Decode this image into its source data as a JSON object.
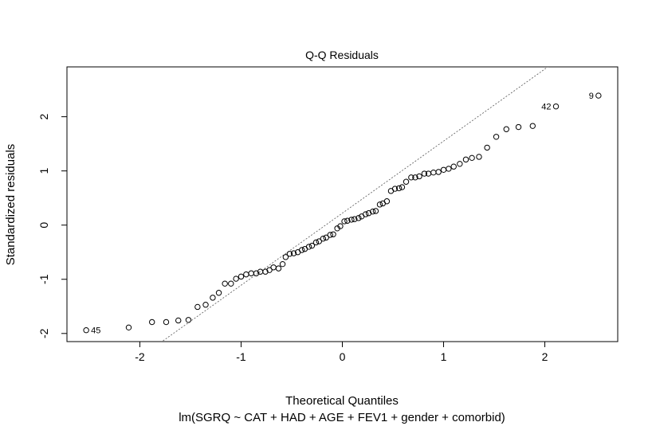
{
  "chart_data": {
    "type": "scatter",
    "title": "Q-Q Residuals",
    "xlabel": "Theoretical Quantiles",
    "ylabel": "Standardized residuals",
    "subtitle": "lm(SGRQ ~ CAT + HAD + AGE + FEV1 + gender + comorbid)",
    "xlim": [
      -2.72,
      2.72
    ],
    "ylim": [
      -2.15,
      2.92
    ],
    "xticks": [
      -2,
      -1,
      0,
      1,
      2
    ],
    "yticks": [
      -2,
      -1,
      0,
      1,
      2
    ],
    "xtick_labels": [
      "-2",
      "-1",
      "0",
      "1",
      "2"
    ],
    "ytick_labels": [
      "-2",
      "-1",
      "0",
      "1",
      "2"
    ],
    "grid": false,
    "reference_line": {
      "slope": 1.33,
      "intercept": 0.22
    },
    "points": [
      {
        "x": -2.53,
        "y": -1.94
      },
      {
        "x": -2.11,
        "y": -1.89
      },
      {
        "x": -1.88,
        "y": -1.79
      },
      {
        "x": -1.74,
        "y": -1.79
      },
      {
        "x": -1.62,
        "y": -1.76
      },
      {
        "x": -1.52,
        "y": -1.75
      },
      {
        "x": -1.43,
        "y": -1.51
      },
      {
        "x": -1.35,
        "y": -1.47
      },
      {
        "x": -1.28,
        "y": -1.34
      },
      {
        "x": -1.22,
        "y": -1.25
      },
      {
        "x": -1.16,
        "y": -1.08
      },
      {
        "x": -1.1,
        "y": -1.08
      },
      {
        "x": -1.05,
        "y": -0.99
      },
      {
        "x": -1.0,
        "y": -0.95
      },
      {
        "x": -0.95,
        "y": -0.91
      },
      {
        "x": -0.9,
        "y": -0.89
      },
      {
        "x": -0.85,
        "y": -0.89
      },
      {
        "x": -0.81,
        "y": -0.86
      },
      {
        "x": -0.76,
        "y": -0.86
      },
      {
        "x": -0.72,
        "y": -0.83
      },
      {
        "x": -0.68,
        "y": -0.78
      },
      {
        "x": -0.63,
        "y": -0.8
      },
      {
        "x": -0.59,
        "y": -0.72
      },
      {
        "x": -0.56,
        "y": -0.59
      },
      {
        "x": -0.52,
        "y": -0.53
      },
      {
        "x": -0.48,
        "y": -0.52
      },
      {
        "x": -0.44,
        "y": -0.5
      },
      {
        "x": -0.4,
        "y": -0.46
      },
      {
        "x": -0.37,
        "y": -0.44
      },
      {
        "x": -0.33,
        "y": -0.4
      },
      {
        "x": -0.3,
        "y": -0.38
      },
      {
        "x": -0.26,
        "y": -0.32
      },
      {
        "x": -0.23,
        "y": -0.3
      },
      {
        "x": -0.19,
        "y": -0.25
      },
      {
        "x": -0.16,
        "y": -0.23
      },
      {
        "x": -0.12,
        "y": -0.18
      },
      {
        "x": -0.09,
        "y": -0.17
      },
      {
        "x": -0.05,
        "y": -0.06
      },
      {
        "x": -0.02,
        "y": -0.02
      },
      {
        "x": 0.02,
        "y": 0.07
      },
      {
        "x": 0.05,
        "y": 0.08
      },
      {
        "x": 0.09,
        "y": 0.1
      },
      {
        "x": 0.12,
        "y": 0.11
      },
      {
        "x": 0.16,
        "y": 0.13
      },
      {
        "x": 0.19,
        "y": 0.16
      },
      {
        "x": 0.23,
        "y": 0.2
      },
      {
        "x": 0.26,
        "y": 0.22
      },
      {
        "x": 0.3,
        "y": 0.25
      },
      {
        "x": 0.33,
        "y": 0.26
      },
      {
        "x": 0.37,
        "y": 0.38
      },
      {
        "x": 0.4,
        "y": 0.4
      },
      {
        "x": 0.44,
        "y": 0.44
      },
      {
        "x": 0.48,
        "y": 0.63
      },
      {
        "x": 0.52,
        "y": 0.67
      },
      {
        "x": 0.56,
        "y": 0.68
      },
      {
        "x": 0.59,
        "y": 0.7
      },
      {
        "x": 0.63,
        "y": 0.8
      },
      {
        "x": 0.68,
        "y": 0.88
      },
      {
        "x": 0.72,
        "y": 0.88
      },
      {
        "x": 0.76,
        "y": 0.9
      },
      {
        "x": 0.81,
        "y": 0.95
      },
      {
        "x": 0.85,
        "y": 0.95
      },
      {
        "x": 0.9,
        "y": 0.97
      },
      {
        "x": 0.95,
        "y": 0.98
      },
      {
        "x": 1.0,
        "y": 1.02
      },
      {
        "x": 1.05,
        "y": 1.04
      },
      {
        "x": 1.1,
        "y": 1.08
      },
      {
        "x": 1.16,
        "y": 1.13
      },
      {
        "x": 1.22,
        "y": 1.21
      },
      {
        "x": 1.28,
        "y": 1.24
      },
      {
        "x": 1.35,
        "y": 1.26
      },
      {
        "x": 1.43,
        "y": 1.43
      },
      {
        "x": 1.52,
        "y": 1.63
      },
      {
        "x": 1.62,
        "y": 1.77
      },
      {
        "x": 1.74,
        "y": 1.81
      },
      {
        "x": 1.88,
        "y": 1.83
      },
      {
        "x": 2.11,
        "y": 2.19
      },
      {
        "x": 2.53,
        "y": 2.39
      }
    ],
    "point_labels": [
      {
        "text": "45",
        "x": -2.53,
        "y": -1.94,
        "side": "right"
      },
      {
        "text": "42",
        "x": 2.11,
        "y": 2.19,
        "side": "left"
      },
      {
        "text": "9",
        "x": 2.53,
        "y": 2.39,
        "side": "left"
      }
    ]
  }
}
